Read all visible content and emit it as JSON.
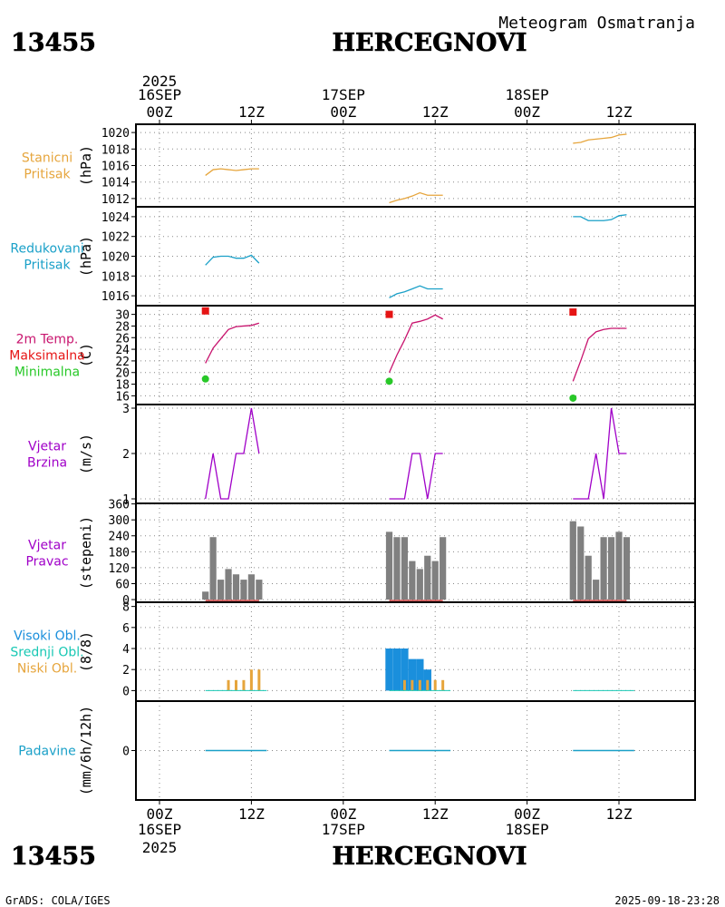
{
  "station_id": "13455",
  "station_name": "HERCEGNOVI",
  "subtitle": "Meteogram Osmatranja",
  "footer_left": "GrADS: COLA/IGES",
  "footer_right": "2025-09-18-23:28",
  "time_axis": {
    "year": "2025",
    "labels": [
      {
        "hour": 0,
        "time": "00Z",
        "date": "16SEP"
      },
      {
        "hour": 12,
        "time": "12Z",
        "date": ""
      },
      {
        "hour": 24,
        "time": "00Z",
        "date": "17SEP"
      },
      {
        "hour": 36,
        "time": "12Z",
        "date": ""
      },
      {
        "hour": 48,
        "time": "00Z",
        "date": "18SEP"
      },
      {
        "hour": 60,
        "time": "12Z",
        "date": ""
      }
    ]
  },
  "colors": {
    "station_pressure": "#e6a53c",
    "reduced_pressure": "#1aa0c8",
    "temperature": "#c8146e",
    "tmax": "#e61414",
    "tmin": "#28c828",
    "wind": "#a000c8",
    "wind_dir": "#808080",
    "high_cloud": "#1a8fdc",
    "mid_cloud": "#18c8b4",
    "low_cloud": "#e6a53c",
    "precip": "#1aa0c8"
  },
  "chart_data": [
    {
      "id": "station_pressure",
      "type": "line",
      "labels": [
        "Stanicni",
        "Pritisak"
      ],
      "ylabel": "(hPa)",
      "ylim": [
        1011,
        1021
      ],
      "yticks": [
        1012,
        1014,
        1016,
        1018,
        1020
      ],
      "series": [
        {
          "name": "Stanicni Pritisak",
          "x": [
            6,
            7,
            8,
            9,
            10,
            11,
            12,
            13
          ],
          "y": [
            1014.8,
            1015.5,
            1015.6,
            1015.5,
            1015.4,
            1015.5,
            1015.6,
            1015.6
          ]
        },
        {
          "name": "Stanicni Pritisak",
          "x": [
            30,
            31,
            32,
            33,
            34,
            35,
            36,
            37
          ],
          "y": [
            1011.5,
            1011.8,
            1012.0,
            1012.3,
            1012.7,
            1012.4,
            1012.4,
            1012.4
          ]
        },
        {
          "name": "Stanicni Pritisak",
          "x": [
            54,
            55,
            56,
            57,
            58,
            59,
            60,
            61
          ],
          "y": [
            1018.7,
            1018.8,
            1019.1,
            1019.2,
            1019.3,
            1019.4,
            1019.7,
            1019.8
          ]
        }
      ]
    },
    {
      "id": "reduced_pressure",
      "type": "line",
      "labels": [
        "Redukovani",
        "Pritisak"
      ],
      "ylabel": "(hPa)",
      "ylim": [
        1015,
        1025
      ],
      "yticks": [
        1016,
        1018,
        1020,
        1022,
        1024
      ],
      "series": [
        {
          "name": "Redukovani Pritisak",
          "x": [
            6,
            7,
            8,
            9,
            10,
            11,
            12,
            13
          ],
          "y": [
            1019.1,
            1019.9,
            1020.0,
            1020.0,
            1019.8,
            1019.8,
            1020.1,
            1019.3
          ]
        },
        {
          "name": "Redukovani Pritisak",
          "x": [
            30,
            31,
            32,
            33,
            34,
            35,
            36,
            37
          ],
          "y": [
            1015.8,
            1016.2,
            1016.4,
            1016.7,
            1017.0,
            1016.7,
            1016.7,
            1016.7
          ]
        },
        {
          "name": "Redukovani Pritisak",
          "x": [
            54,
            55,
            56,
            57,
            58,
            59,
            60,
            61
          ],
          "y": [
            1024.0,
            1024.0,
            1023.6,
            1023.6,
            1023.6,
            1023.7,
            1024.1,
            1024.2
          ]
        }
      ]
    },
    {
      "id": "temperature",
      "type": "line",
      "labels": [
        "2m Temp.",
        "Maksimalna",
        "Minimalna"
      ],
      "ylabel": "(C)",
      "ylim": [
        14.5,
        31.5
      ],
      "yticks": [
        16,
        18,
        20,
        22,
        24,
        26,
        28,
        30
      ],
      "series": [
        {
          "name": "2m Temp.",
          "x": [
            6,
            7,
            8,
            9,
            10,
            11,
            12,
            13
          ],
          "y": [
            21.6,
            24.2,
            25.8,
            27.4,
            27.9,
            28.0,
            28.1,
            28.5
          ]
        },
        {
          "name": "2m Temp.",
          "x": [
            30,
            31,
            32,
            33,
            34,
            35,
            36,
            37
          ],
          "y": [
            20.0,
            23.0,
            25.6,
            28.5,
            28.8,
            29.2,
            29.9,
            29.2
          ]
        },
        {
          "name": "2m Temp.",
          "x": [
            54,
            55,
            56,
            57,
            58,
            59,
            60,
            61
          ],
          "y": [
            18.5,
            22.0,
            25.8,
            27.0,
            27.4,
            27.6,
            27.6,
            27.6
          ]
        }
      ],
      "tmax": {
        "x": [
          6,
          30,
          54
        ],
        "y": [
          30.6,
          30.0,
          30.4
        ]
      },
      "tmin": {
        "x": [
          6,
          30,
          54
        ],
        "y": [
          18.9,
          18.5,
          15.6
        ]
      }
    },
    {
      "id": "wind_speed",
      "type": "line",
      "labels": [
        "Vjetar",
        "Brzina"
      ],
      "ylabel": "(m/s)",
      "ylim": [
        0.9,
        3.08
      ],
      "yticks": [
        1,
        2,
        3
      ],
      "series": [
        {
          "name": "Vjetar Brzina",
          "x": [
            6,
            7,
            8,
            9,
            10,
            11,
            12,
            13
          ],
          "y": [
            1,
            2,
            1,
            1,
            2,
            2,
            3,
            2
          ]
        },
        {
          "name": "Vjetar Brzina",
          "x": [
            30,
            31,
            32,
            33,
            34,
            35,
            36,
            37
          ],
          "y": [
            1,
            1,
            1,
            2,
            2,
            1,
            2,
            2
          ]
        },
        {
          "name": "Vjetar Brzina",
          "x": [
            54,
            55,
            56,
            57,
            58,
            59,
            60,
            61
          ],
          "y": [
            1,
            1,
            1,
            2,
            1,
            3,
            2,
            2
          ]
        }
      ]
    },
    {
      "id": "wind_direction",
      "type": "bar",
      "labels": [
        "Vjetar",
        "Pravac"
      ],
      "ylabel": "(stepeni)",
      "ylim": [
        -10,
        362
      ],
      "yticks": [
        0,
        60,
        120,
        180,
        240,
        300,
        360
      ],
      "ytick_labels": [
        "0",
        "60",
        "120",
        "180",
        "240",
        "300",
        "360"
      ],
      "series": [
        {
          "name": "Vjetar Pravac",
          "x": [
            6,
            7,
            8,
            9,
            10,
            11,
            12,
            13
          ],
          "y": [
            30,
            235,
            75,
            115,
            95,
            75,
            95,
            75
          ]
        },
        {
          "name": "Vjetar Pravac",
          "x": [
            30,
            31,
            32,
            33,
            34,
            35,
            36,
            37
          ],
          "y": [
            255,
            235,
            235,
            145,
            115,
            165,
            145,
            235
          ]
        },
        {
          "name": "Vjetar Pravac",
          "x": [
            54,
            55,
            56,
            57,
            58,
            59,
            60,
            61
          ],
          "y": [
            295,
            275,
            165,
            75,
            235,
            235,
            255,
            235
          ]
        }
      ]
    },
    {
      "id": "clouds",
      "type": "bar",
      "labels": [
        "Visoki Obl.",
        "Srednji Obl.",
        "Niski Obl."
      ],
      "ylabel": "(8/8)",
      "ylim": [
        -1,
        8.4
      ],
      "yticks": [
        0,
        2,
        4,
        6,
        8
      ],
      "series": [
        {
          "name": "Visoki Obl.",
          "x": [
            30,
            31,
            32,
            33,
            34,
            35
          ],
          "y": [
            4,
            4,
            4,
            3,
            3,
            2
          ]
        },
        {
          "name": "Niski Obl.",
          "x": [
            9,
            10,
            11,
            12,
            13,
            32,
            33,
            34,
            35,
            36,
            37
          ],
          "y": [
            1,
            1,
            1,
            2,
            2,
            1,
            1,
            1,
            1,
            1,
            1
          ]
        }
      ]
    },
    {
      "id": "precipitation",
      "type": "line",
      "labels": [
        "Padavine"
      ],
      "ylabel": "(mm/6h/12h)",
      "ylim": [
        -1,
        1
      ],
      "yticks": [
        0
      ],
      "series": [
        {
          "name": "Padavine",
          "x": [
            6,
            14
          ],
          "y": [
            0,
            0
          ]
        },
        {
          "name": "Padavine",
          "x": [
            30,
            38
          ],
          "y": [
            0,
            0
          ]
        },
        {
          "name": "Padavine",
          "x": [
            54,
            62
          ],
          "y": [
            0,
            0
          ]
        }
      ]
    }
  ]
}
